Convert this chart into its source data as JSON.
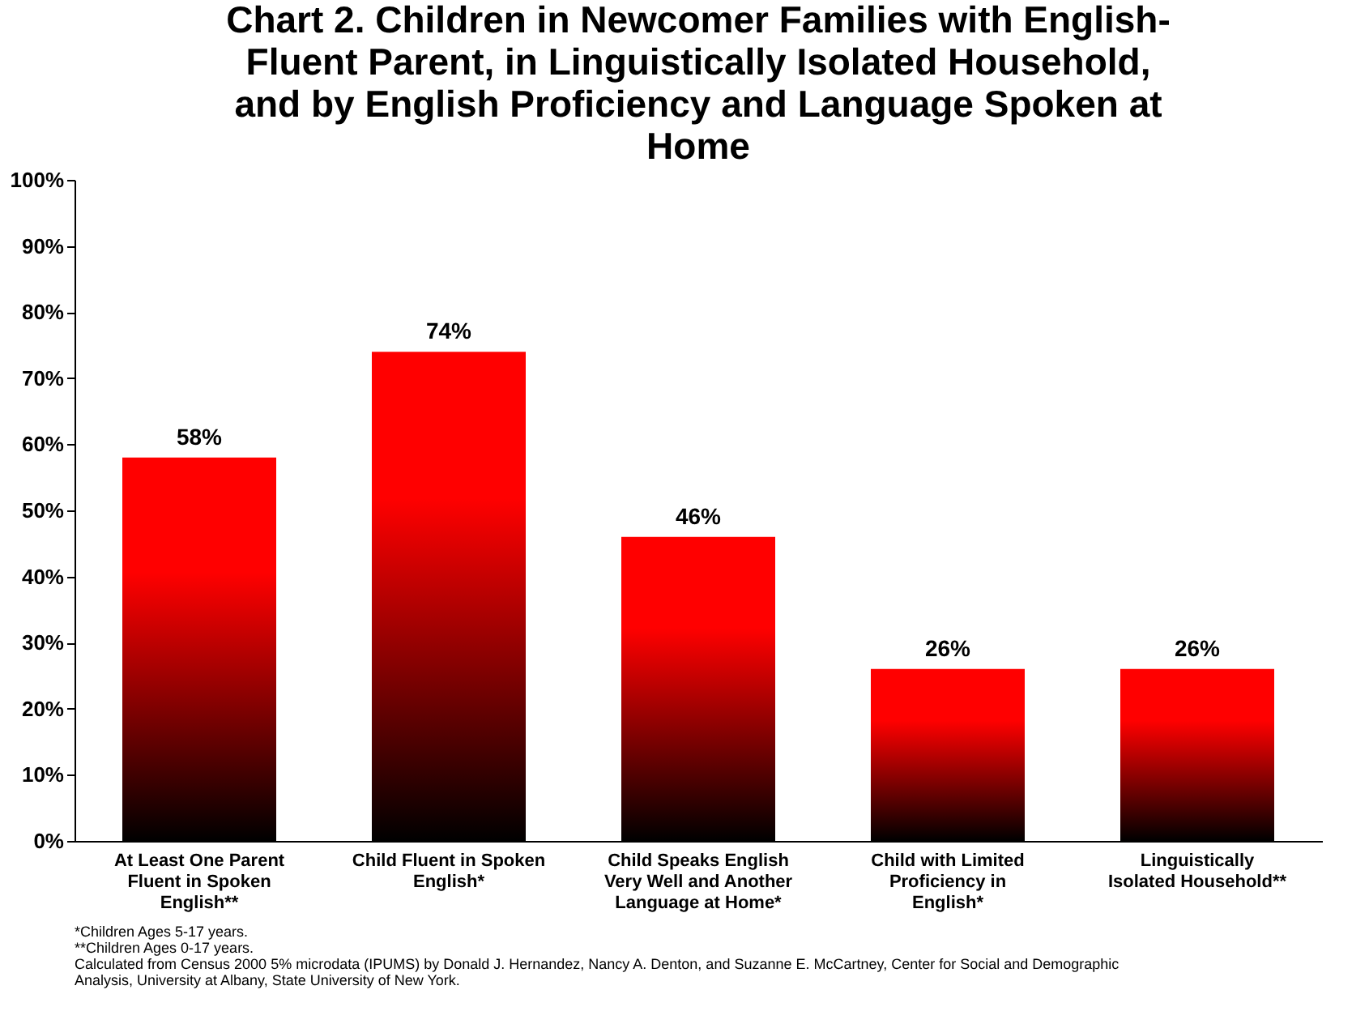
{
  "chart_data": {
    "type": "bar",
    "title": "Chart 2. Children in Newcomer Families with English-Fluent Parent, in Linguistically Isolated Household, and by English Proficiency and Language Spoken at Home",
    "categories": [
      "At Least One Parent Fluent in Spoken English**",
      "Child Fluent in Spoken English*",
      "Child Speaks English Very Well and Another Language at Home*",
      "Child with Limited Proficiency in English*",
      "Linguistically Isolated Household**"
    ],
    "values": [
      58,
      74,
      46,
      26,
      26
    ],
    "value_labels": [
      "58%",
      "74%",
      "46%",
      "26%",
      "26%"
    ],
    "color": "#ff0000",
    "ylim": [
      0,
      100
    ],
    "yticks": [
      {
        "value": 0,
        "label": "0%"
      },
      {
        "value": 10,
        "label": "10%"
      },
      {
        "value": 20,
        "label": "20%"
      },
      {
        "value": 30,
        "label": "30%"
      },
      {
        "value": 40,
        "label": "40%"
      },
      {
        "value": 50,
        "label": "50%"
      },
      {
        "value": 60,
        "label": "60%"
      },
      {
        "value": 70,
        "label": "70%"
      },
      {
        "value": 80,
        "label": "80%"
      },
      {
        "value": 90,
        "label": "90%"
      },
      {
        "value": 100,
        "label": "100%"
      }
    ],
    "grid": false,
    "annotations": [
      "*Children Ages 5-17 years.",
      "**Children Ages 0-17 years.",
      "Calculated from Census 2000 5% microdata (IPUMS) by Donald J. Hernandez, Nancy A. Denton, and Suzanne E. McCartney, Center for Social and Demographic Analysis, University at Albany, State University of New York."
    ]
  }
}
